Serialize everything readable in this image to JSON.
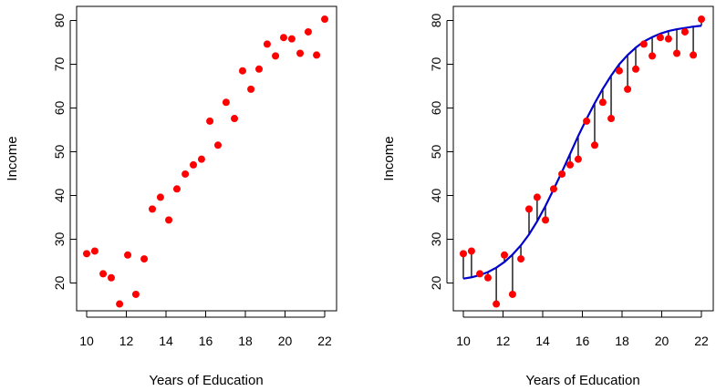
{
  "chart_data": [
    {
      "type": "scatter",
      "xlabel": "Years of Education",
      "ylabel": "Income",
      "xlim": [
        10,
        22
      ],
      "ylim": [
        15,
        80
      ],
      "xticks": [
        "10",
        "12",
        "14",
        "16",
        "18",
        "20",
        "22"
      ],
      "yticks": [
        "20",
        "30",
        "40",
        "50",
        "60",
        "70",
        "80"
      ],
      "grid": false,
      "point_color": "#ff0000",
      "x": [
        10.0,
        10.41,
        10.83,
        11.24,
        11.66,
        12.07,
        12.48,
        12.9,
        13.31,
        13.72,
        14.14,
        14.55,
        14.97,
        15.38,
        15.79,
        16.21,
        16.62,
        17.03,
        17.45,
        17.86,
        18.28,
        18.69,
        19.1,
        19.52,
        19.93,
        20.34,
        20.76,
        21.17,
        21.59,
        22.0
      ],
      "y": [
        26.7,
        27.3,
        22.1,
        21.2,
        15.2,
        26.4,
        17.4,
        25.5,
        36.9,
        39.6,
        34.4,
        41.5,
        44.9,
        47.0,
        48.3,
        57.0,
        51.5,
        61.3,
        57.6,
        68.5,
        64.3,
        68.9,
        74.6,
        71.9,
        76.1,
        75.8,
        72.5,
        77.4,
        72.1,
        80.3
      ]
    },
    {
      "type": "scatter",
      "xlabel": "Years of Education",
      "ylabel": "Income",
      "xlim": [
        10,
        22
      ],
      "ylim": [
        15,
        80
      ],
      "xticks": [
        "10",
        "12",
        "14",
        "16",
        "18",
        "20",
        "22"
      ],
      "yticks": [
        "20",
        "30",
        "40",
        "50",
        "60",
        "70",
        "80"
      ],
      "grid": false,
      "point_color": "#ff0000",
      "fit_color": "#0000cc",
      "residual_color": "#000000",
      "x": [
        10.0,
        10.41,
        10.83,
        11.24,
        11.66,
        12.07,
        12.48,
        12.9,
        13.31,
        13.72,
        14.14,
        14.55,
        14.97,
        15.38,
        15.79,
        16.21,
        16.62,
        17.03,
        17.45,
        17.86,
        18.28,
        18.69,
        19.1,
        19.52,
        19.93,
        20.34,
        20.76,
        21.17,
        21.59,
        22.0
      ],
      "y": [
        26.7,
        27.3,
        22.1,
        21.2,
        15.2,
        26.4,
        17.4,
        25.5,
        36.9,
        39.6,
        34.4,
        41.5,
        44.9,
        47.0,
        48.3,
        57.0,
        51.5,
        61.3,
        57.6,
        68.5,
        64.3,
        68.9,
        74.6,
        71.9,
        76.1,
        75.8,
        72.5,
        77.4,
        72.1,
        80.3
      ],
      "fitted": [
        21.0,
        21.3,
        21.8,
        22.5,
        23.5,
        24.8,
        26.5,
        28.6,
        31.1,
        34.1,
        37.6,
        41.4,
        45.4,
        49.5,
        53.6,
        57.5,
        61.1,
        64.4,
        67.4,
        70.0,
        72.1,
        73.8,
        75.2,
        76.2,
        77.0,
        77.6,
        78.0,
        78.3,
        78.6,
        78.8
      ]
    }
  ]
}
